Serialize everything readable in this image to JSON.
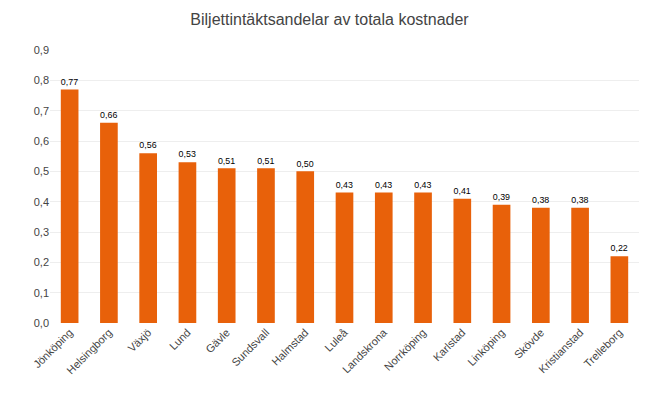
{
  "chart_data": {
    "type": "bar",
    "title": "Biljettintäktsandelar av totala kostnader",
    "categories": [
      "Jönköping",
      "Helsingborg",
      "Växjö",
      "Lund",
      "Gävle",
      "Sundsvall",
      "Halmstad",
      "Luleå",
      "Landskrona",
      "Norrköping",
      "Karlstad",
      "Linköping",
      "Skövde",
      "Kristianstad",
      "Trelleborg"
    ],
    "values": [
      0.77,
      0.66,
      0.56,
      0.53,
      0.51,
      0.51,
      0.5,
      0.43,
      0.43,
      0.43,
      0.41,
      0.39,
      0.38,
      0.38,
      0.22
    ],
    "value_labels": [
      "0,77",
      "0,66",
      "0,56",
      "0,53",
      "0,51",
      "0,51",
      "0,50",
      "0,43",
      "0,43",
      "0,43",
      "0,41",
      "0,39",
      "0,38",
      "0,38",
      "0,22"
    ],
    "color": "#E8610A",
    "ylim": [
      0,
      0.9
    ],
    "yticks": [
      {
        "value": 0,
        "label": "0,0"
      },
      {
        "value": 0.1,
        "label": "0,1"
      },
      {
        "value": 0.2,
        "label": "0,2"
      },
      {
        "value": 0.3,
        "label": "0,3"
      },
      {
        "value": 0.4,
        "label": "0,4"
      },
      {
        "value": 0.5,
        "label": "0,5"
      },
      {
        "value": 0.6,
        "label": "0,6"
      },
      {
        "value": 0.7,
        "label": "0,7"
      },
      {
        "value": 0.8,
        "label": "0,8"
      },
      {
        "value": 0.9,
        "label": "0,9"
      }
    ],
    "grid": true,
    "data_labels": true
  }
}
